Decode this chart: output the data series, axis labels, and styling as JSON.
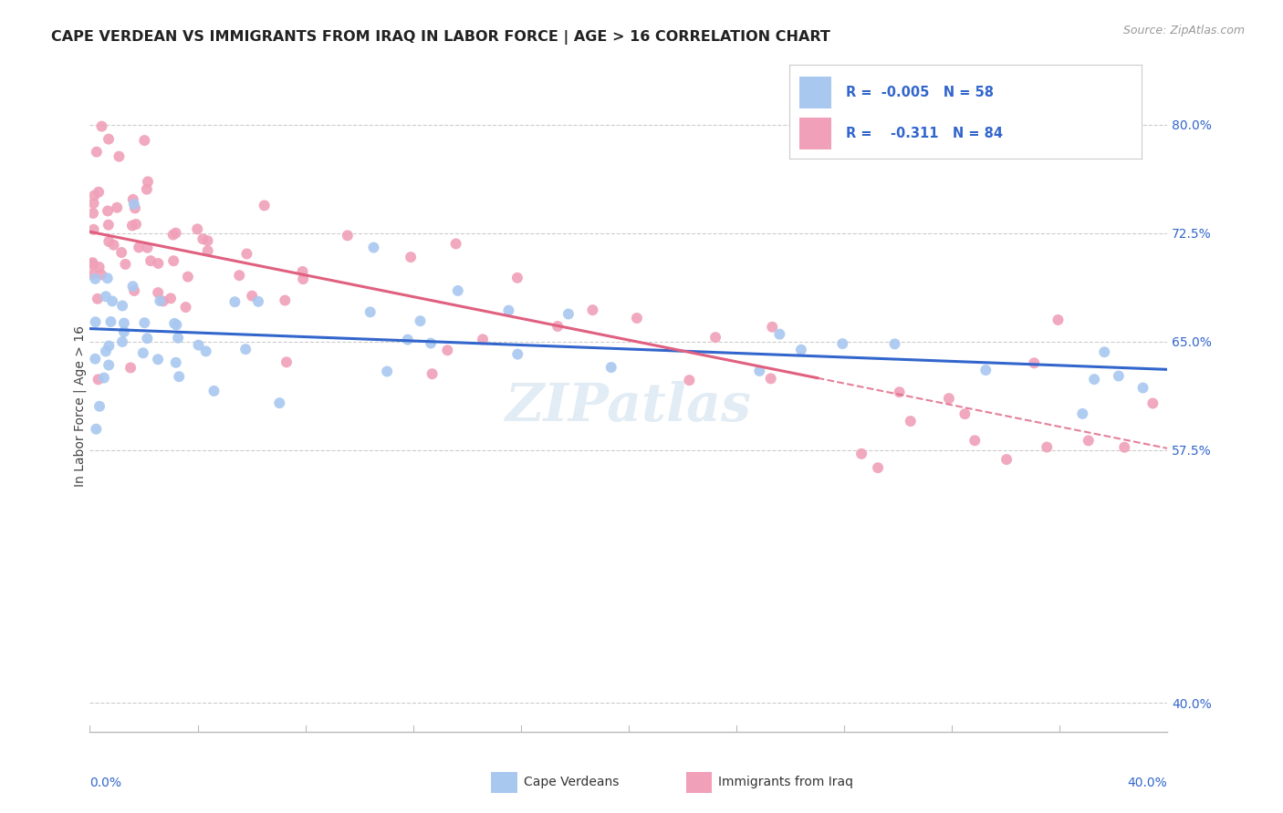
{
  "title": "CAPE VERDEAN VS IMMIGRANTS FROM IRAQ IN LABOR FORCE | AGE > 16 CORRELATION CHART",
  "source_text": "Source: ZipAtlas.com",
  "ylabel": "In Labor Force | Age > 16",
  "right_yticks": [
    80.0,
    72.5,
    65.0,
    57.5,
    40.0
  ],
  "xlim": [
    0.0,
    40.0
  ],
  "ylim": [
    38.0,
    83.0
  ],
  "blue_R": -0.005,
  "blue_N": 58,
  "pink_R": -0.311,
  "pink_N": 84,
  "blue_color": "#A8C8F0",
  "pink_color": "#F0A0B8",
  "blue_line_color": "#3366CC",
  "pink_line_color": "#E06080",
  "watermark": "ZIPatlas",
  "legend_blue_label": "Cape Verdeans",
  "legend_pink_label": "Immigrants from Iraq"
}
